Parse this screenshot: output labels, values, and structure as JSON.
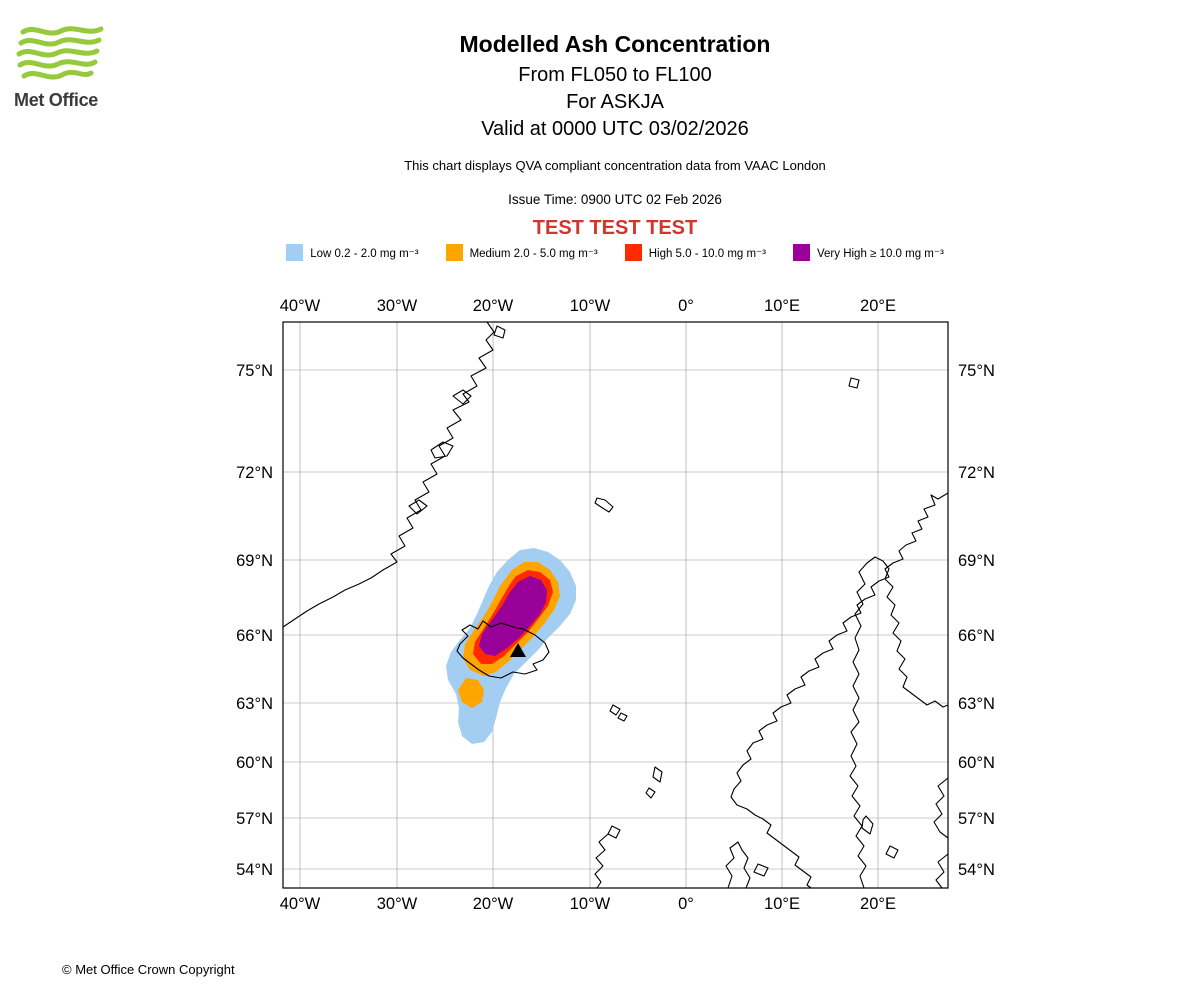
{
  "logo": {
    "text": "Met Office"
  },
  "colors": {
    "logo_green": "#97C93D",
    "test_banner": "#D2362B",
    "low": "#A3CEF2",
    "medium": "#FFA500",
    "high": "#FF2A00",
    "very_high": "#990099"
  },
  "header": {
    "title": "Modelled Ash Concentration",
    "subtitle1": "From FL050 to FL100",
    "subtitle2": "For ASKJA",
    "subtitle3": "Valid at 0000 UTC 03/02/2026",
    "description": "This chart displays QVA compliant concentration data from VAAC London",
    "issue_time": "Issue Time: 0900 UTC 02 Feb 2026",
    "test_banner": "TEST TEST TEST"
  },
  "legend": {
    "items": [
      {
        "label": "Low 0.2 - 2.0 mg m⁻³",
        "color": "#A3CEF2"
      },
      {
        "label": "Medium 2.0 - 5.0 mg m⁻³",
        "color": "#FFA500"
      },
      {
        "label": "High 5.0 - 10.0 mg m⁻³",
        "color": "#FF2A00"
      },
      {
        "label": "Very High ≥ 10.0 mg m⁻³",
        "color": "#990099"
      }
    ]
  },
  "map": {
    "lon_labels": [
      "40°W",
      "30°W",
      "20°W",
      "10°W",
      "0°",
      "10°E",
      "20°E"
    ],
    "lat_labels": [
      "75°N",
      "72°N",
      "69°N",
      "66°N",
      "63°N",
      "60°N",
      "57°N",
      "54°N"
    ]
  },
  "footer": {
    "copyright": "© Met Office Crown Copyright"
  }
}
